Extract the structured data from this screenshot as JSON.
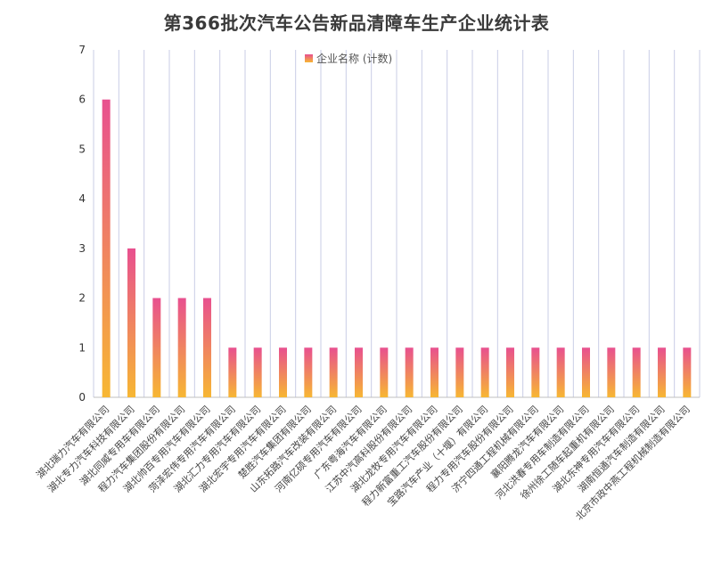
{
  "chart_data": {
    "type": "bar",
    "title": "第366批次汽车公告新品清障车生产企业统计表",
    "legend": "企业名称 (计数)",
    "legend_position": "top-center",
    "ylim": [
      0,
      7
    ],
    "yticks": [
      0,
      1,
      2,
      3,
      4,
      5,
      6,
      7
    ],
    "grid": "vertical",
    "colors": {
      "bar_top": "#e8508f",
      "bar_bottom": "#f7b733",
      "grid": "#c9cde6",
      "axis": "#bfbfbf"
    },
    "categories": [
      "湖北瑞力汽车有限公司",
      "湖北专力汽车科技有限公司",
      "湖北同威专用车有限公司",
      "程力汽车集团股份有限公司",
      "湖北帅百专用汽车有限公司",
      "菏泽宏伟专用汽车有限公司",
      "湖北汇力专用汽车有限公司",
      "湖北宏宇专用汽车有限公司",
      "楚胜汽车集团有限公司",
      "山东拓路汽车改装有限公司",
      "河南亿硕专用汽车有限公司",
      "广东粤海汽车有限公司",
      "江苏中汽高科股份有限公司",
      "湖北龙牧专用汽车有限公司",
      "程力新富重工汽车股份有限公司",
      "宝路汽车产业（十堰）有限公司",
      "程力专用汽车股份有限公司",
      "济宁四通工程机械有限公司",
      "襄阳腾龙汽车有限公司",
      "河北洪春专用车制造有限公司",
      "徐州徐工随车起重机有限公司",
      "湖北东神专用汽车有限公司",
      "湖南恒通汽车制造有限公司",
      "北京市政中燕工程机械制造有限公司"
    ],
    "values": [
      6,
      3,
      2,
      2,
      2,
      1,
      1,
      1,
      1,
      1,
      1,
      1,
      1,
      1,
      1,
      1,
      1,
      1,
      1,
      1,
      1,
      1,
      1,
      1
    ]
  }
}
